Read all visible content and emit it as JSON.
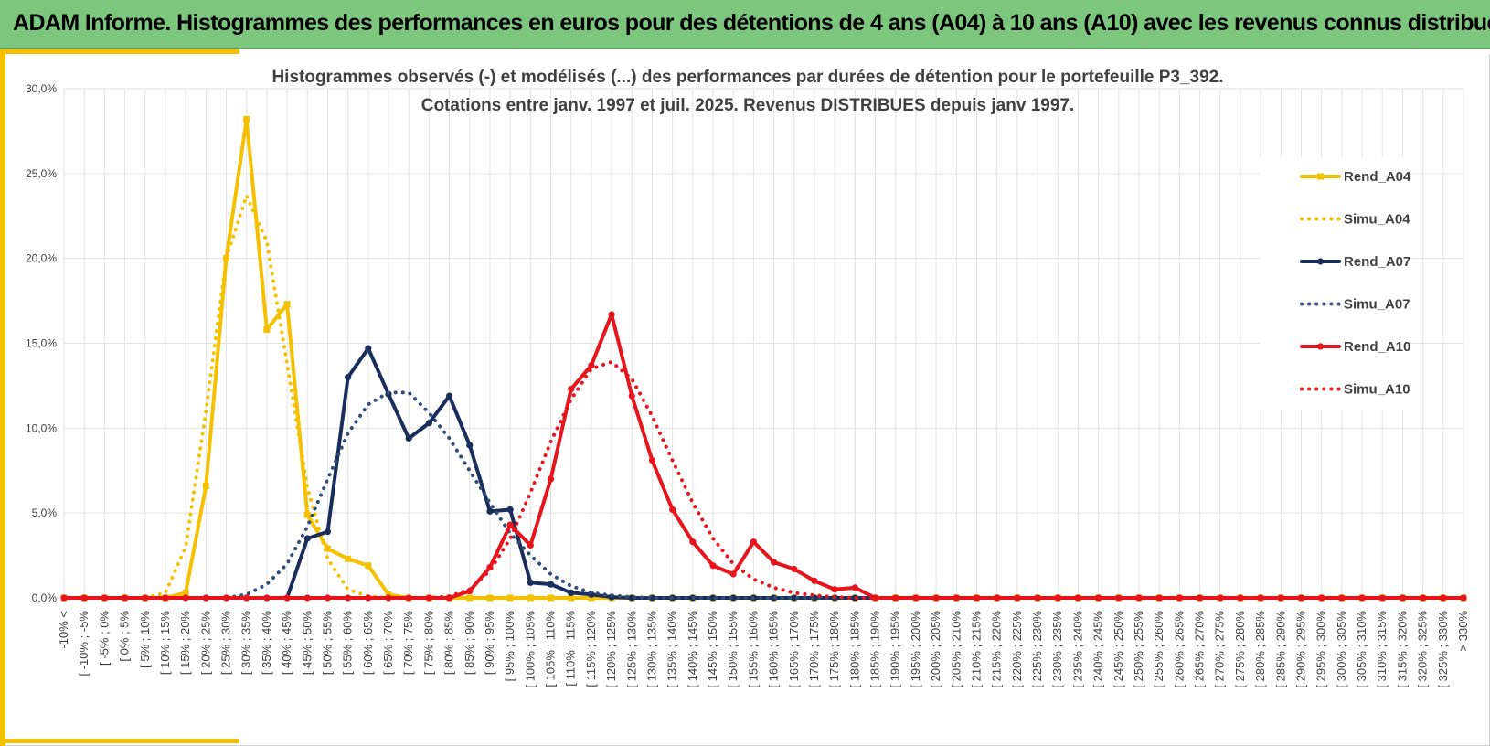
{
  "banner": {
    "title": "ADAM Informe. Histogrammes des performances en euros pour des détentions de 4 ans (A04) à 10 ans (A10) avec les revenus connus distribués"
  },
  "colors": {
    "banner_bg": "#7dc67e",
    "accent": "#f5c000",
    "A04": "#f5c000",
    "A07": "#1a2e5c",
    "A10": "#e8141c"
  },
  "chart_data": {
    "type": "line",
    "title": [
      "Histogrammes observés (-) et modélisés (...) des performances par durées de détention pour le portefeuille P3_392.",
      "Cotations entre janv. 1997 et juil. 2025. Revenus DISTRIBUES depuis janv 1997."
    ],
    "xlabel": "",
    "ylabel": "",
    "ylim": [
      0,
      30
    ],
    "yticks": [
      "0,0%",
      "5,0%",
      "10,0%",
      "15,0%",
      "20,0%",
      "25,0%",
      "30,0%"
    ],
    "grid": true,
    "legend_position": "right",
    "categories": [
      "-10% <",
      "[ -10% ; -5%",
      "[ -5% ; 0%",
      "[ 0% ; 5%",
      "[ 5% ; 10%",
      "[ 10% ; 15%",
      "[ 15% ; 20%",
      "[ 20% ; 25%",
      "[ 25% ; 30%",
      "[ 30% ; 35%",
      "[ 35% ; 40%",
      "[ 40% ; 45%",
      "[ 45% ; 50%",
      "[ 50% ; 55%",
      "[ 55% ; 60%",
      "[ 60% ; 65%",
      "[ 65% ; 70%",
      "[ 70% ; 75%",
      "[ 75% ; 80%",
      "[ 80% ; 85%",
      "[ 85% ; 90%",
      "[ 90% ; 95%",
      "[ 95% ; 100%",
      "[ 100% ; 105%",
      "[ 105% ; 110%",
      "[ 110% ; 115%",
      "[ 115% ; 120%",
      "[ 120% ; 125%",
      "[ 125% ; 130%",
      "[ 130% ; 135%",
      "[ 135% ; 140%",
      "[ 140% ; 145%",
      "[ 145% ; 150%",
      "[ 150% ; 155%",
      "[ 155% ; 160%",
      "[ 160% ; 165%",
      "[ 165% ; 170%",
      "[ 170% ; 175%",
      "[ 175% ; 180%",
      "[ 180% ; 185%",
      "[ 185% ; 190%",
      "[ 190% ; 195%",
      "[ 195% ; 200%",
      "[ 200% ; 205%",
      "[ 205% ; 210%",
      "[ 210% ; 215%",
      "[ 215% ; 220%",
      "[ 220% ; 225%",
      "[ 225% ; 230%",
      "[ 230% ; 235%",
      "[ 235% ; 240%",
      "[ 240% ; 245%",
      "[ 245% ; 250%",
      "[ 250% ; 255%",
      "[ 255% ; 260%",
      "[ 260% ; 265%",
      "[ 265% ; 270%",
      "[ 270% ; 275%",
      "[ 275% ; 280%",
      "[ 280% ; 285%",
      "[ 285% ; 290%",
      "[ 290% ; 295%",
      "[ 295% ; 300%",
      "[ 300% ; 305%",
      "[ 305% ; 310%",
      "[ 310% ; 315%",
      "[ 315% ; 320%",
      "[ 320% ; 325%",
      "[ 325% ; 330%",
      "> 330%"
    ],
    "series": [
      {
        "name": "Rend_A04",
        "style": "solid",
        "marker": "square",
        "color": "#f5c000",
        "values": [
          0,
          0,
          0,
          0,
          0,
          0,
          0.3,
          6.6,
          20.0,
          28.2,
          15.8,
          17.3,
          4.9,
          2.9,
          2.3,
          1.9,
          0.2,
          0,
          0,
          0,
          0,
          0,
          0,
          0,
          0,
          0,
          0,
          0,
          0,
          0,
          0,
          0,
          0,
          0,
          0,
          0,
          0,
          0,
          0,
          0,
          0,
          0,
          0,
          0,
          0,
          0,
          0,
          0,
          0,
          0,
          0,
          0,
          0,
          0,
          0,
          0,
          0,
          0,
          0,
          0,
          0,
          0,
          0,
          0,
          0,
          0,
          0,
          0,
          0,
          0
        ]
      },
      {
        "name": "Simu_A04",
        "style": "dotted",
        "color": "#f5c000",
        "values": [
          0,
          0,
          0,
          0,
          0,
          0.3,
          3.0,
          11.0,
          20.0,
          23.7,
          21.0,
          13.8,
          6.5,
          2.3,
          0.5,
          0.1,
          0,
          0,
          0,
          0,
          0,
          0,
          0,
          0,
          0,
          0,
          0,
          0,
          0,
          0,
          0,
          0,
          0,
          0,
          0,
          0,
          0,
          0,
          0,
          0,
          0,
          0,
          0,
          0,
          0,
          0,
          0,
          0,
          0,
          0,
          0,
          0,
          0,
          0,
          0,
          0,
          0,
          0,
          0,
          0,
          0,
          0,
          0,
          0,
          0,
          0,
          0,
          0,
          0,
          0
        ]
      },
      {
        "name": "Rend_A07",
        "style": "solid",
        "marker": "circle",
        "color": "#1a2e5c",
        "values": [
          0,
          0,
          0,
          0,
          0,
          0,
          0,
          0,
          0,
          0,
          0,
          0,
          3.5,
          3.9,
          13.0,
          14.7,
          12.0,
          9.4,
          10.3,
          11.9,
          9.0,
          5.1,
          5.2,
          0.9,
          0.8,
          0.3,
          0.2,
          0.05,
          0,
          0,
          0,
          0,
          0,
          0,
          0,
          0,
          0,
          0,
          0,
          0,
          0,
          0,
          0,
          0,
          0,
          0,
          0,
          0,
          0,
          0,
          0,
          0,
          0,
          0,
          0,
          0,
          0,
          0,
          0,
          0,
          0,
          0,
          0,
          0,
          0,
          0,
          0,
          0,
          0,
          0
        ]
      },
      {
        "name": "Simu_A07",
        "style": "dotted",
        "color": "#2e4d78",
        "values": [
          0,
          0,
          0,
          0,
          0,
          0,
          0,
          0,
          0,
          0.2,
          0.8,
          2.0,
          4.2,
          7.0,
          9.7,
          11.4,
          12.1,
          12.1,
          10.9,
          9.4,
          7.5,
          5.6,
          3.8,
          2.5,
          1.4,
          0.7,
          0.3,
          0.15,
          0.05,
          0,
          0,
          0,
          0,
          0,
          0,
          0,
          0,
          0,
          0,
          0,
          0,
          0,
          0,
          0,
          0,
          0,
          0,
          0,
          0,
          0,
          0,
          0,
          0,
          0,
          0,
          0,
          0,
          0,
          0,
          0,
          0,
          0,
          0,
          0,
          0,
          0,
          0,
          0,
          0,
          0
        ]
      },
      {
        "name": "Rend_A10",
        "style": "solid",
        "marker": "circle",
        "color": "#e8141c",
        "values": [
          0,
          0,
          0,
          0,
          0,
          0,
          0,
          0,
          0,
          0,
          0,
          0,
          0,
          0,
          0,
          0,
          0,
          0,
          0,
          0,
          0.4,
          1.8,
          4.3,
          3.1,
          7.0,
          12.3,
          13.7,
          16.7,
          11.9,
          8.1,
          5.2,
          3.3,
          1.9,
          1.4,
          3.3,
          2.1,
          1.7,
          1.0,
          0.5,
          0.6,
          0,
          0,
          0,
          0,
          0,
          0,
          0,
          0,
          0,
          0,
          0,
          0,
          0,
          0,
          0,
          0,
          0,
          0,
          0,
          0,
          0,
          0,
          0,
          0,
          0,
          0,
          0,
          0,
          0,
          0
        ]
      },
      {
        "name": "Simu_A10",
        "style": "dotted",
        "color": "#e8141c",
        "values": [
          0,
          0,
          0,
          0,
          0,
          0,
          0,
          0,
          0,
          0,
          0,
          0,
          0,
          0,
          0,
          0,
          0,
          0,
          0,
          0.1,
          0.5,
          1.6,
          3.5,
          6.2,
          9.2,
          11.7,
          13.5,
          13.9,
          12.9,
          10.7,
          8.1,
          5.6,
          3.5,
          2.0,
          1.1,
          0.6,
          0.3,
          0.15,
          0.05,
          0,
          0,
          0,
          0,
          0,
          0,
          0,
          0,
          0,
          0,
          0,
          0,
          0,
          0,
          0,
          0,
          0,
          0,
          0,
          0,
          0,
          0,
          0,
          0,
          0,
          0,
          0,
          0,
          0,
          0,
          0
        ]
      }
    ]
  }
}
